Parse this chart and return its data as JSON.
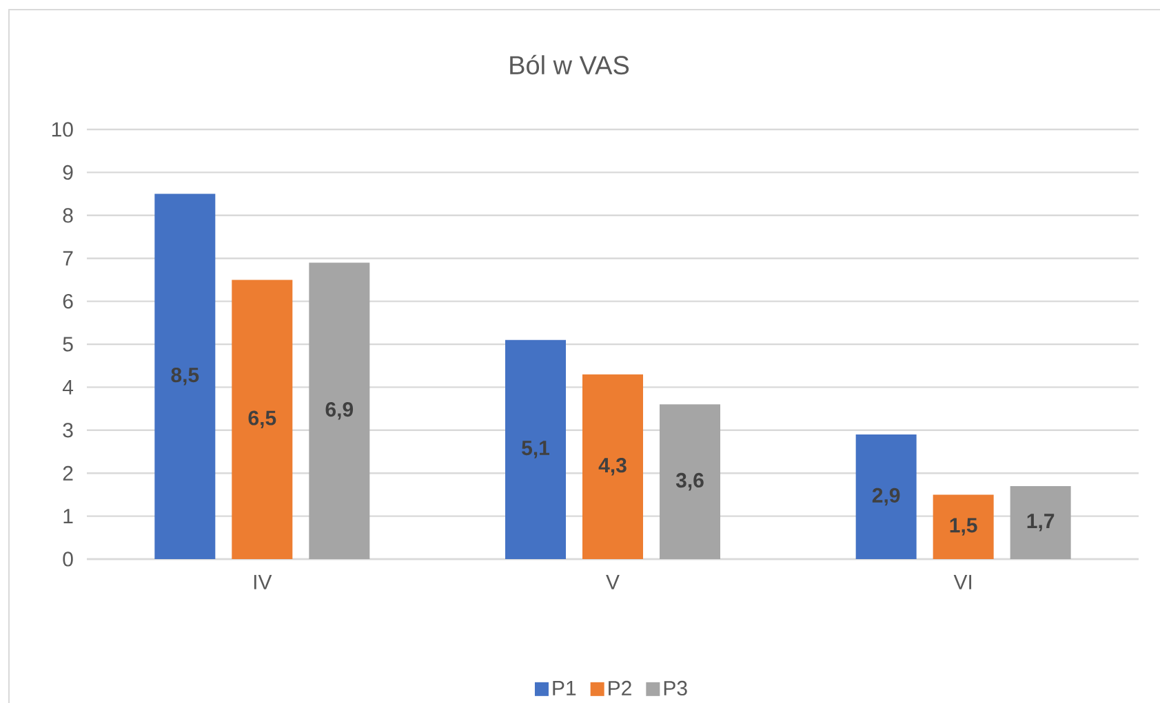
{
  "chart_data": {
    "type": "bar",
    "title": "Ból w VAS",
    "categories": [
      "IV",
      "V",
      "VI"
    ],
    "series": [
      {
        "name": "P1",
        "color": "#4472c4",
        "values": [
          8.5,
          5.1,
          2.9
        ],
        "value_labels": [
          "8,5",
          "5,1",
          "2,9"
        ]
      },
      {
        "name": "P2",
        "color": "#ed7d31",
        "values": [
          6.5,
          4.3,
          1.5
        ],
        "value_labels": [
          "6,5",
          "4,3",
          "1,5"
        ]
      },
      {
        "name": "P3",
        "color": "#a5a5a5",
        "values": [
          6.9,
          3.6,
          1.7
        ],
        "value_labels": [
          "6,9",
          "3,6",
          "1,7"
        ]
      }
    ],
    "ylim": [
      0,
      10
    ],
    "yticks": [
      0,
      1,
      2,
      3,
      4,
      5,
      6,
      7,
      8,
      9,
      10
    ],
    "grid": "y",
    "legend": "bottom"
  }
}
